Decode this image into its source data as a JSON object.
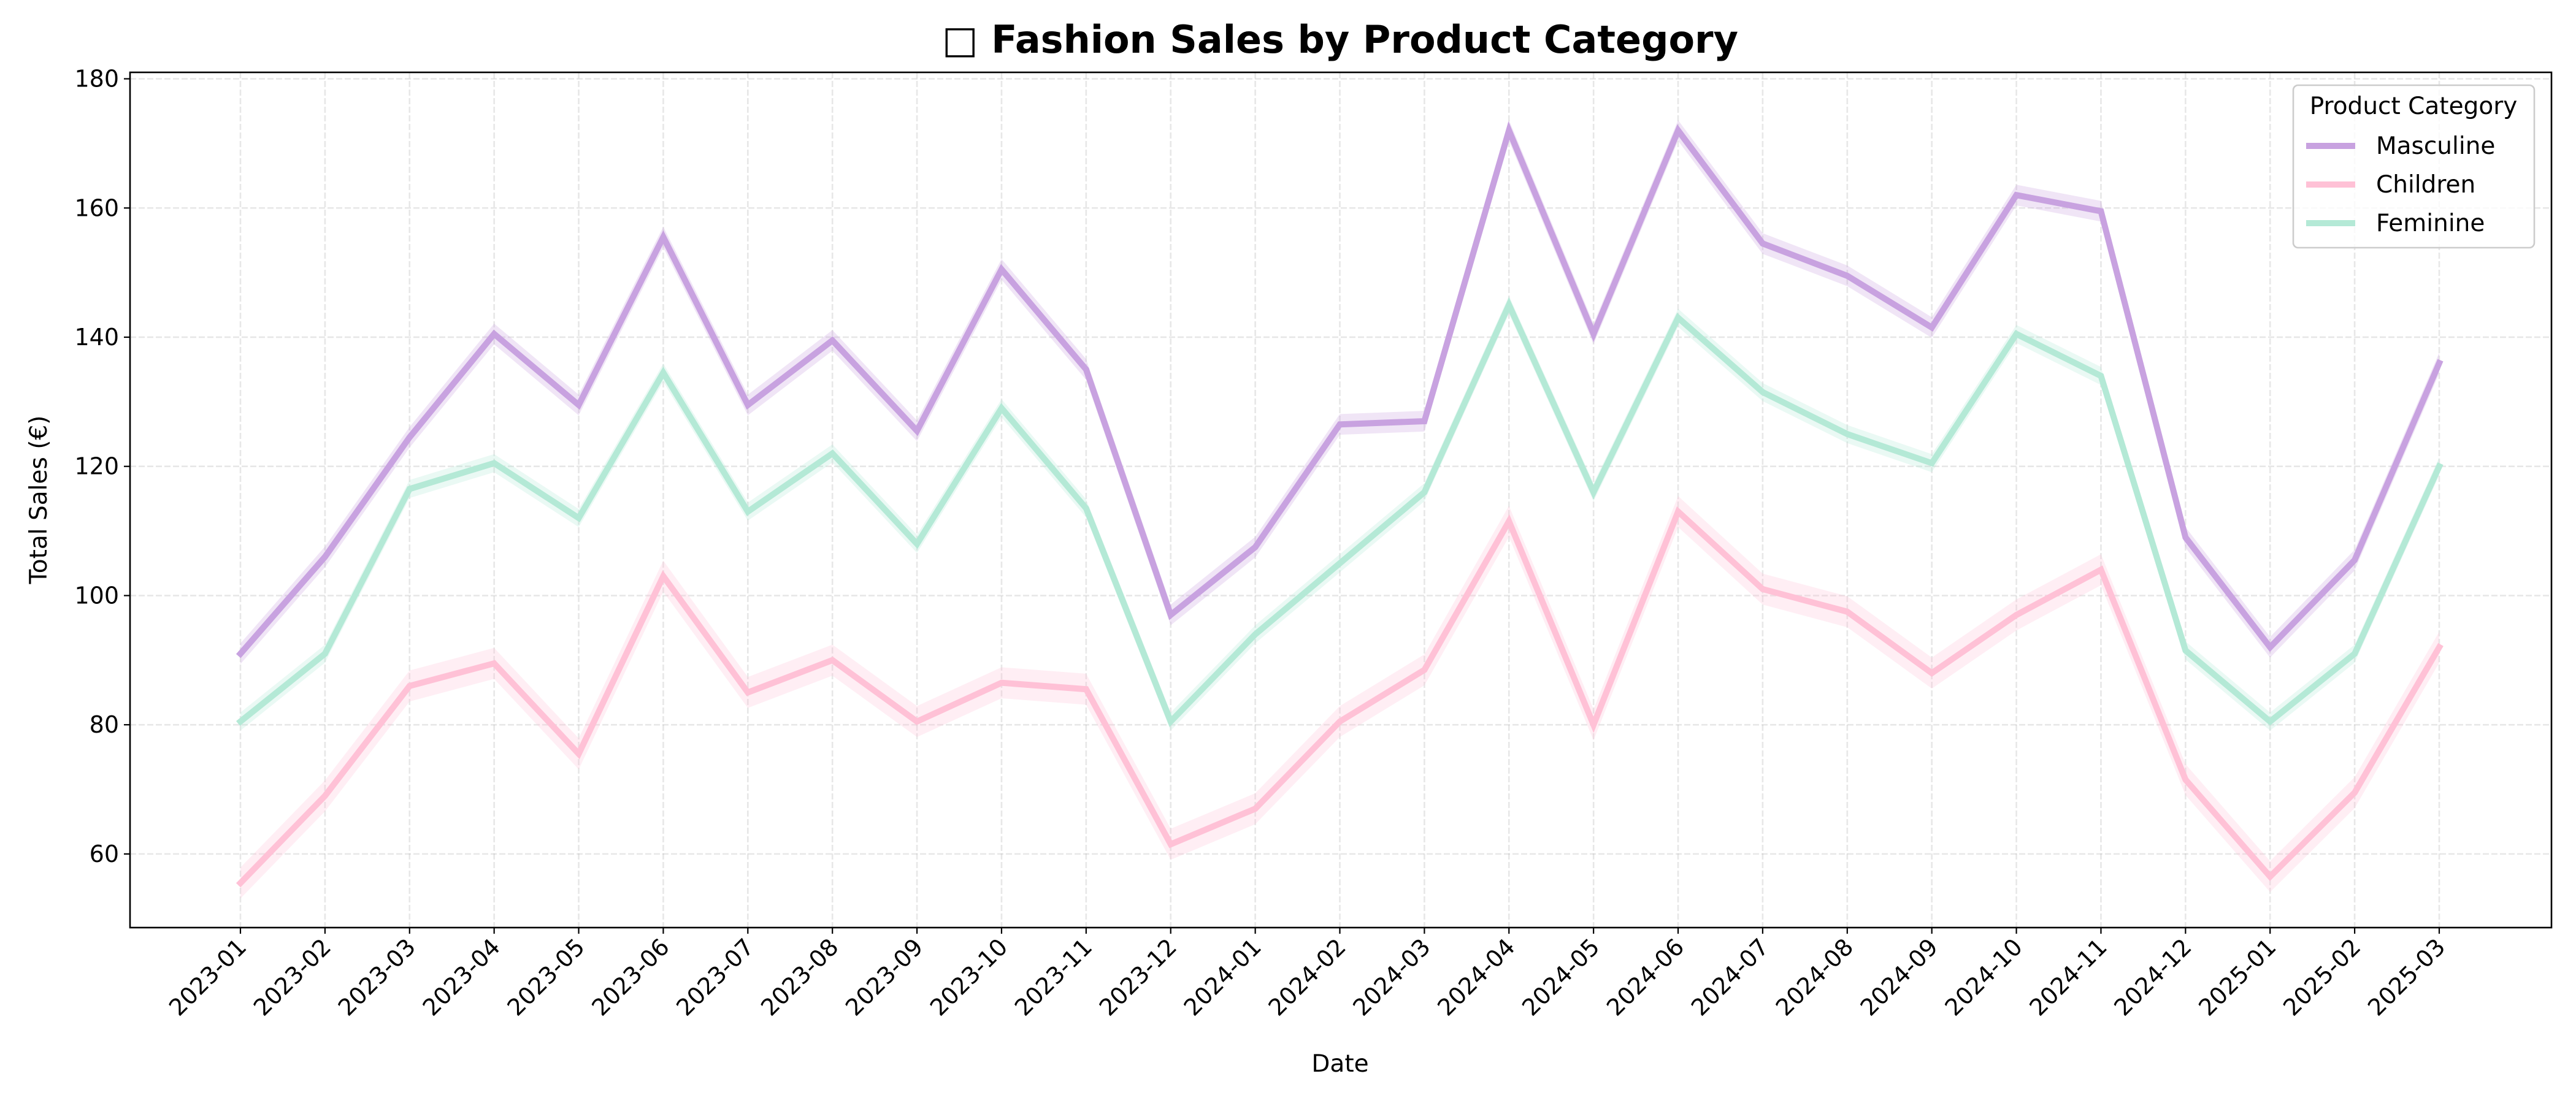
{
  "chart_data": {
    "type": "line",
    "title": "□ Fashion Sales by Product Category",
    "xlabel": "Date",
    "ylabel": "Total Sales (€)",
    "ylim": [
      48.6,
      181
    ],
    "yticks": [
      60,
      80,
      100,
      120,
      140,
      160,
      180
    ],
    "grid": true,
    "legend": {
      "title": "Product Category",
      "placement": "top-right"
    },
    "categories": [
      "2023-01",
      "2023-02",
      "2023-03",
      "2023-04",
      "2023-05",
      "2023-06",
      "2023-07",
      "2023-08",
      "2023-09",
      "2023-10",
      "2023-11",
      "2023-12",
      "2024-01",
      "2024-02",
      "2024-03",
      "2024-04",
      "2024-05",
      "2024-06",
      "2024-07",
      "2024-08",
      "2024-09",
      "2024-10",
      "2024-11",
      "2024-12",
      "2025-01",
      "2025-02",
      "2025-03"
    ],
    "series": [
      {
        "name": "Masculine",
        "color": "#c8a2e0",
        "values": [
          91,
          106,
          124.5,
          140.5,
          129.5,
          155.5,
          129.5,
          139.5,
          125.5,
          150.5,
          135,
          97,
          107.5,
          126.5,
          127,
          172,
          140.5,
          172,
          154.5,
          149.5,
          141.5,
          162,
          159.5,
          109,
          92,
          105.5,
          136
        ]
      },
      {
        "name": "Children",
        "color": "#ffc1d6",
        "values": [
          55.5,
          69,
          86,
          89.5,
          75.5,
          103,
          85,
          90,
          80.5,
          86.5,
          85.5,
          61.5,
          67,
          80.5,
          88.5,
          111.5,
          80,
          113,
          101,
          97.5,
          88,
          97,
          104,
          71.5,
          56.5,
          69.5,
          92
        ]
      },
      {
        "name": "Feminine",
        "color": "#b4e9d6",
        "values": [
          80.5,
          91,
          116.5,
          120.5,
          112,
          134.5,
          113,
          122,
          108,
          129,
          113.5,
          80.5,
          94,
          105,
          116,
          145,
          116,
          143,
          131.5,
          125,
          120.5,
          140.5,
          134,
          91.5,
          80.5,
          91,
          120
        ]
      }
    ]
  }
}
